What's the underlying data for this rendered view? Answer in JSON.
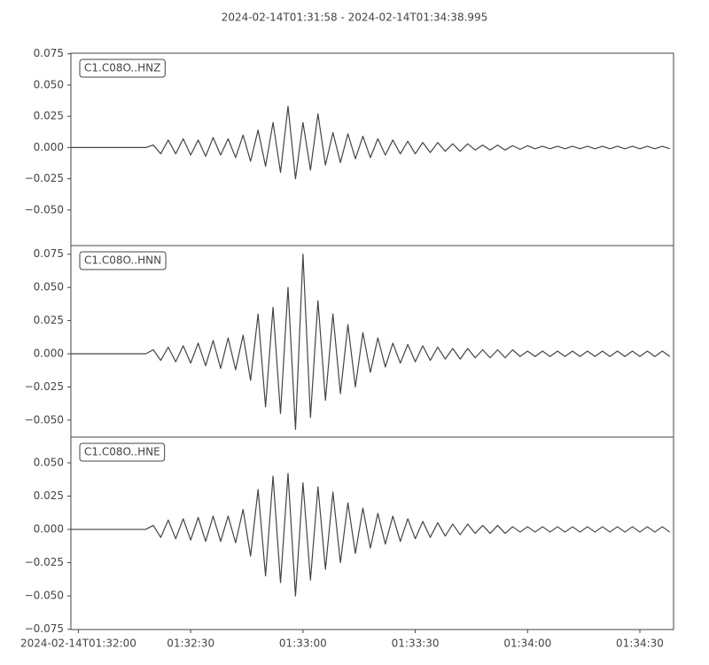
{
  "chart_data": [
    {
      "type": "line",
      "title": "2024-02-14T01:31:58  -  2024-02-14T01:34:38.995",
      "x": [
        0,
        2,
        4,
        6,
        8,
        10,
        12,
        14,
        16,
        18,
        20,
        22,
        24,
        26,
        28,
        30,
        32,
        34,
        36,
        38,
        40,
        42,
        44,
        46,
        48,
        50,
        52,
        54,
        56,
        58,
        60,
        62,
        64,
        66,
        68,
        70,
        72,
        74,
        76,
        78,
        80,
        82,
        84,
        86,
        88,
        90,
        92,
        94,
        96,
        98,
        100,
        102,
        104,
        106,
        108,
        110,
        112,
        114,
        116,
        118,
        120,
        122,
        124,
        126,
        128,
        130,
        132,
        134,
        136,
        138,
        140,
        142,
        144,
        146,
        148,
        150,
        152,
        154,
        156,
        158,
        160
      ],
      "xlim": [
        0,
        160.995
      ],
      "series": [
        {
          "name": "C1.C08O..HNZ",
          "color": "#444444",
          "values": [
            0,
            0,
            0,
            0,
            0,
            0,
            0,
            0,
            0,
            0,
            0,
            0.002,
            -0.005,
            0.006,
            -0.005,
            0.007,
            -0.006,
            0.006,
            -0.007,
            0.008,
            -0.006,
            0.007,
            -0.008,
            0.01,
            -0.011,
            0.014,
            -0.015,
            0.02,
            -0.02,
            0.033,
            -0.025,
            0.02,
            -0.018,
            0.027,
            -0.014,
            0.012,
            -0.012,
            0.011,
            -0.009,
            0.009,
            -0.008,
            0.007,
            -0.006,
            0.006,
            -0.005,
            0.005,
            -0.005,
            0.004,
            -0.004,
            0.004,
            -0.003,
            0.003,
            -0.003,
            0.003,
            -0.002,
            0.002,
            -0.002,
            0.002,
            -0.002,
            0.0015,
            -0.0015,
            0.0015,
            -0.001,
            0.001,
            -0.001,
            0.001,
            -0.001,
            0.001,
            -0.001,
            0.001,
            -0.001,
            0.001,
            -0.001,
            0.001,
            -0.001,
            0.001,
            -0.001,
            0.001,
            -0.001,
            0.001,
            -0.001
          ]
        }
      ],
      "ylim": [
        -0.0785,
        0.0755
      ],
      "yticks": [
        0.075,
        {
          "value": 0.05,
          "label": "0.050"
        },
        0.025,
        {
          "value": 0,
          "label": "0.000"
        },
        {
          "value": -0.025,
          "label": "−0.025"
        },
        {
          "value": -0.05,
          "label": "−0.050"
        }
      ]
    },
    {
      "type": "line",
      "x": [
        0,
        2,
        4,
        6,
        8,
        10,
        12,
        14,
        16,
        18,
        20,
        22,
        24,
        26,
        28,
        30,
        32,
        34,
        36,
        38,
        40,
        42,
        44,
        46,
        48,
        50,
        52,
        54,
        56,
        58,
        60,
        62,
        64,
        66,
        68,
        70,
        72,
        74,
        76,
        78,
        80,
        82,
        84,
        86,
        88,
        90,
        92,
        94,
        96,
        98,
        100,
        102,
        104,
        106,
        108,
        110,
        112,
        114,
        116,
        118,
        120,
        122,
        124,
        126,
        128,
        130,
        132,
        134,
        136,
        138,
        140,
        142,
        144,
        146,
        148,
        150,
        152,
        154,
        156,
        158,
        160
      ],
      "xlim": [
        0,
        160.995
      ],
      "series": [
        {
          "name": "C1.C08O..HNN",
          "color": "#444444",
          "values": [
            0,
            0,
            0,
            0,
            0,
            0,
            0,
            0,
            0,
            0,
            0,
            0.003,
            -0.005,
            0.005,
            -0.006,
            0.006,
            -0.007,
            0.008,
            -0.009,
            0.01,
            -0.011,
            0.012,
            -0.012,
            0.014,
            -0.02,
            0.03,
            -0.04,
            0.035,
            -0.045,
            0.05,
            -0.057,
            0.075,
            -0.048,
            0.04,
            -0.035,
            0.03,
            -0.03,
            0.022,
            -0.025,
            0.016,
            -0.014,
            0.012,
            -0.01,
            0.008,
            -0.007,
            0.007,
            -0.006,
            0.006,
            -0.005,
            0.005,
            -0.004,
            0.004,
            -0.004,
            0.004,
            -0.003,
            0.003,
            -0.003,
            0.003,
            -0.003,
            0.003,
            -0.002,
            0.002,
            -0.002,
            0.002,
            -0.002,
            0.002,
            -0.002,
            0.002,
            -0.002,
            0.002,
            -0.002,
            0.002,
            -0.002,
            0.002,
            -0.002,
            0.002,
            -0.002,
            0.002,
            -0.002,
            0.002,
            -0.002
          ]
        }
      ],
      "ylim": [
        -0.0628,
        0.0815
      ],
      "yticks": [
        0.075,
        {
          "value": 0.05,
          "label": "0.050"
        },
        0.025,
        {
          "value": 0,
          "label": "0.000"
        },
        {
          "value": -0.025,
          "label": "−0.025"
        },
        {
          "value": -0.05,
          "label": "−0.050"
        }
      ]
    },
    {
      "type": "line",
      "x": [
        0,
        2,
        4,
        6,
        8,
        10,
        12,
        14,
        16,
        18,
        20,
        22,
        24,
        26,
        28,
        30,
        32,
        34,
        36,
        38,
        40,
        42,
        44,
        46,
        48,
        50,
        52,
        54,
        56,
        58,
        60,
        62,
        64,
        66,
        68,
        70,
        72,
        74,
        76,
        78,
        80,
        82,
        84,
        86,
        88,
        90,
        92,
        94,
        96,
        98,
        100,
        102,
        104,
        106,
        108,
        110,
        112,
        114,
        116,
        118,
        120,
        122,
        124,
        126,
        128,
        130,
        132,
        134,
        136,
        138,
        140,
        142,
        144,
        146,
        148,
        150,
        152,
        154,
        156,
        158,
        160
      ],
      "xlim": [
        0,
        160.995
      ],
      "xticks": [
        {
          "value": 2,
          "label": "2024-02-14T01:32:00"
        },
        {
          "value": 32,
          "label": "01:32:30"
        },
        {
          "value": 62,
          "label": "01:33:00"
        },
        {
          "value": 92,
          "label": "01:33:30"
        },
        {
          "value": 122,
          "label": "01:34:00"
        },
        {
          "value": 152,
          "label": "01:34:30"
        }
      ],
      "series": [
        {
          "name": "C1.C08O..HNE",
          "color": "#444444",
          "values": [
            0,
            0,
            0,
            0,
            0,
            0,
            0,
            0,
            0,
            0,
            0,
            0.003,
            -0.006,
            0.007,
            -0.007,
            0.008,
            -0.008,
            0.009,
            -0.009,
            0.01,
            -0.009,
            0.01,
            -0.01,
            0.015,
            -0.02,
            0.03,
            -0.035,
            0.04,
            -0.04,
            0.042,
            -0.05,
            0.035,
            -0.038,
            0.032,
            -0.03,
            0.028,
            -0.025,
            0.02,
            -0.018,
            0.016,
            -0.014,
            0.012,
            -0.011,
            0.01,
            -0.009,
            0.008,
            -0.007,
            0.006,
            -0.006,
            0.005,
            -0.005,
            0.004,
            -0.004,
            0.004,
            -0.003,
            0.003,
            -0.003,
            0.003,
            -0.003,
            0.002,
            -0.002,
            0.002,
            -0.002,
            0.002,
            -0.002,
            0.002,
            -0.002,
            0.002,
            -0.002,
            0.002,
            -0.002,
            0.002,
            -0.002,
            0.002,
            -0.002,
            0.002,
            -0.002,
            0.002,
            -0.002,
            0.002,
            -0.002
          ]
        }
      ],
      "ylim": [
        -0.0752,
        0.0693
      ],
      "yticks": [
        {
          "value": 0.05,
          "label": "0.050"
        },
        0.025,
        {
          "value": 0,
          "label": "0.000"
        },
        {
          "value": -0.025,
          "label": "−0.025"
        },
        {
          "value": -0.05,
          "label": "−0.050"
        },
        {
          "value": -0.075,
          "label": "−0.075"
        }
      ]
    }
  ]
}
